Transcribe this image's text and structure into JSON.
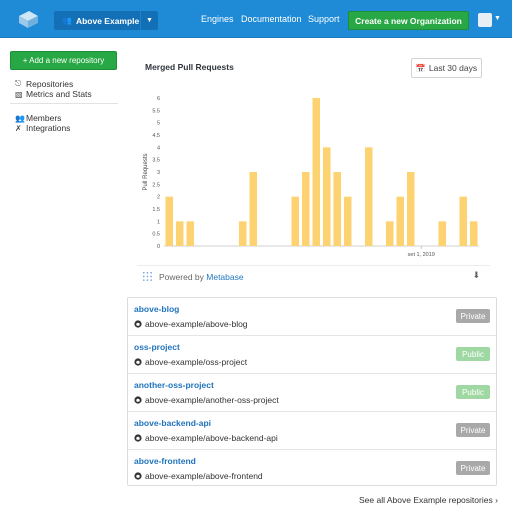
{
  "topbar": {
    "org_name": "Above Example",
    "nav": [
      "Engines",
      "Documentation",
      "Support"
    ],
    "create_org_label": "Create a new Organization"
  },
  "sidebar": {
    "add_repo_label": "+ Add a new repository",
    "items": [
      {
        "label": "Repositories",
        "icon": "repositories-icon"
      },
      {
        "label": "Metrics and Stats",
        "icon": "bar-chart-icon"
      },
      {
        "label": "Members",
        "icon": "members-icon"
      },
      {
        "label": "Integrations",
        "icon": "wrench-icon"
      }
    ]
  },
  "chart_card": {
    "title": "Merged Pull Requests",
    "range_label": "Last 30 days",
    "powered_by": "Powered by",
    "powered_by_link": "Metabase"
  },
  "chart_data": {
    "type": "bar",
    "ylabel": "Pull Requests",
    "ylim": [
      0,
      6
    ],
    "yticks": [
      "0",
      "0.5",
      "1",
      "1.5",
      "2",
      "2.5",
      "3",
      "3.5",
      "4",
      "4.5",
      "5",
      "5.5",
      "6"
    ],
    "xtick_label": "set 1, 2019",
    "xtick_index": 24,
    "values": [
      2,
      1,
      1,
      0,
      0,
      0,
      0,
      1,
      3,
      0,
      0,
      0,
      2,
      3,
      6,
      4,
      3,
      2,
      0,
      4,
      0,
      1,
      2,
      3,
      0,
      0,
      1,
      0,
      2,
      1
    ],
    "bar_color": "#fdd271"
  },
  "repos": [
    {
      "name": "above-blog",
      "path": "above-example/above-blog",
      "visibility": "Private",
      "color": "#a9a9a9"
    },
    {
      "name": "oss-project",
      "path": "above-example/oss-project",
      "visibility": "Public",
      "color": "#9fd8a2"
    },
    {
      "name": "another-oss-project",
      "path": "above-example/another-oss-project",
      "visibility": "Public",
      "color": "#9fd8a2"
    },
    {
      "name": "above-backend-api",
      "path": "above-example/above-backend-api",
      "visibility": "Private",
      "color": "#a9a9a9"
    },
    {
      "name": "above-frontend",
      "path": "above-example/above-frontend",
      "visibility": "Private",
      "color": "#a9a9a9"
    }
  ],
  "see_all_label": "See all Above Example repositories",
  "colors": {
    "topbar": "#1f8ad6",
    "accent_green": "#27a844",
    "link_blue": "#1f73bd"
  }
}
